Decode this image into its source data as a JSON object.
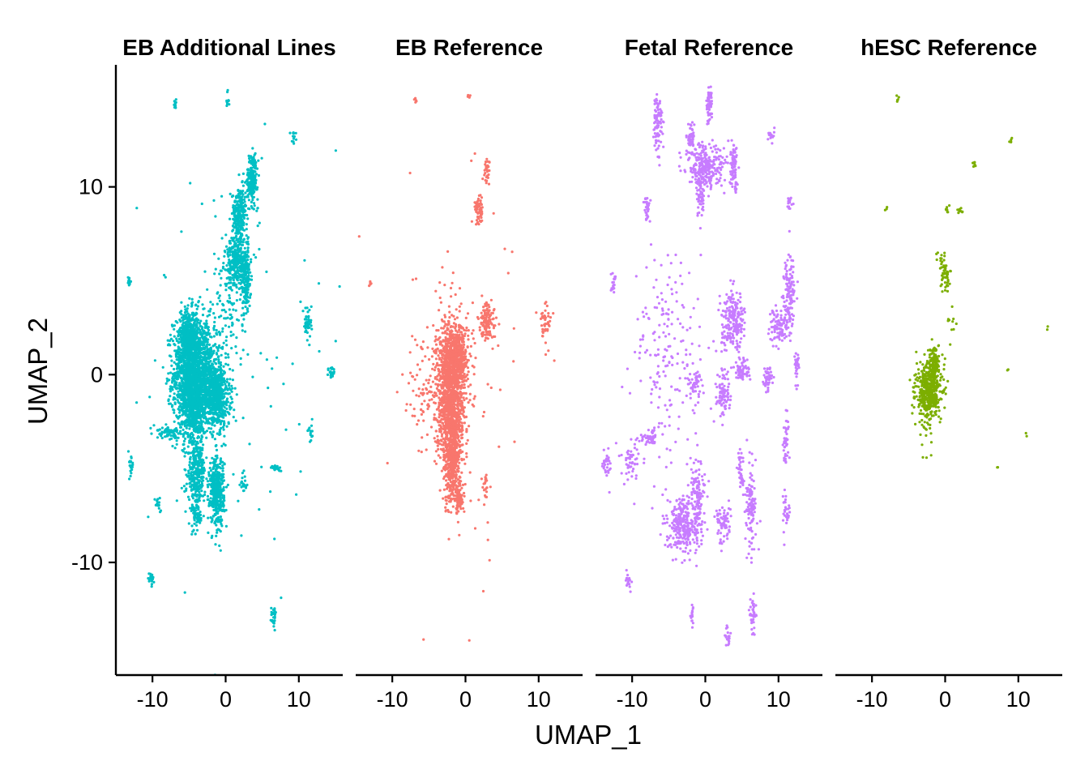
{
  "chart_data": {
    "type": "scatter",
    "xlabel": "UMAP_1",
    "ylabel": "UMAP_2",
    "xlim": [
      -15,
      16
    ],
    "ylim": [
      -16,
      16.5
    ],
    "x_ticks": [
      -10,
      0,
      10
    ],
    "x_tick_labels": [
      "-10",
      "0",
      "10"
    ],
    "y_ticks": [
      -10,
      0,
      10
    ],
    "y_tick_labels": [
      "-10",
      "0",
      "10"
    ],
    "grid": false,
    "legend": "none",
    "panels": [
      {
        "title": "EB Additional Lines",
        "color": "#00BFC4",
        "clusters": [
          {
            "x": -4.8,
            "y": 0.0,
            "sx": 1.2,
            "sy": 1.6,
            "n": 1400
          },
          {
            "x": -5.0,
            "y": 2.2,
            "sx": 0.6,
            "sy": 0.6,
            "n": 300
          },
          {
            "x": -4.2,
            "y": -1.8,
            "sx": 0.7,
            "sy": 0.9,
            "n": 300
          },
          {
            "x": -1.2,
            "y": -1.2,
            "sx": 0.9,
            "sy": 0.8,
            "n": 600
          },
          {
            "x": -2.5,
            "y": 0.3,
            "sx": 1.2,
            "sy": 1.2,
            "n": 400
          },
          {
            "x": -4.0,
            "y": -5.2,
            "sx": 0.6,
            "sy": 0.9,
            "n": 300
          },
          {
            "x": -1.2,
            "y": -6.2,
            "sx": 0.5,
            "sy": 0.9,
            "n": 450
          },
          {
            "x": 1.5,
            "y": 6.0,
            "sx": 0.8,
            "sy": 0.7,
            "n": 300
          },
          {
            "x": 1.9,
            "y": 8.5,
            "sx": 0.5,
            "sy": 0.7,
            "n": 250
          },
          {
            "x": 3.6,
            "y": 10.5,
            "sx": 0.4,
            "sy": 0.6,
            "n": 200
          },
          {
            "x": 2.8,
            "y": 5.0,
            "sx": 0.3,
            "sy": 1.0,
            "n": 150
          },
          {
            "x": 0.2,
            "y": 3.5,
            "sx": 1.0,
            "sy": 1.5,
            "n": 80
          },
          {
            "x": -7.8,
            "y": -3.1,
            "sx": 0.8,
            "sy": 0.2,
            "n": 70
          },
          {
            "x": -3.9,
            "y": -7.3,
            "sx": 0.3,
            "sy": 0.6,
            "n": 70
          },
          {
            "x": 11.2,
            "y": 2.8,
            "sx": 0.3,
            "sy": 0.5,
            "n": 40
          },
          {
            "x": 14.5,
            "y": 0.1,
            "sx": 0.2,
            "sy": 0.2,
            "n": 25
          },
          {
            "x": 7.0,
            "y": -5.0,
            "sx": 0.4,
            "sy": 0.1,
            "n": 20
          },
          {
            "x": 6.6,
            "y": -12.9,
            "sx": 0.2,
            "sy": 0.3,
            "n": 25
          },
          {
            "x": -10.2,
            "y": -10.9,
            "sx": 0.2,
            "sy": 0.2,
            "n": 20
          },
          {
            "x": 2.5,
            "y": -5.8,
            "sx": 0.2,
            "sy": 0.3,
            "n": 20
          },
          {
            "x": -13.0,
            "y": -4.8,
            "sx": 0.2,
            "sy": 0.4,
            "n": 20
          },
          {
            "x": -6.9,
            "y": 14.4,
            "sx": 0.1,
            "sy": 0.2,
            "n": 12
          },
          {
            "x": 0.3,
            "y": 14.7,
            "sx": 0.1,
            "sy": 0.2,
            "n": 12
          },
          {
            "x": -13.2,
            "y": 4.9,
            "sx": 0.1,
            "sy": 0.2,
            "n": 12
          },
          {
            "x": 9.3,
            "y": 12.7,
            "sx": 0.2,
            "sy": 0.2,
            "n": 12
          },
          {
            "x": 11.7,
            "y": -3.0,
            "sx": 0.2,
            "sy": 0.3,
            "n": 15
          },
          {
            "x": -9.2,
            "y": -6.8,
            "sx": 0.2,
            "sy": 0.3,
            "n": 15
          },
          {
            "x": 0.0,
            "y": 0.0,
            "sx": 5.5,
            "sy": 6.5,
            "n": 90
          }
        ]
      },
      {
        "title": "EB Reference",
        "color": "#F8766D",
        "clusters": [
          {
            "x": -2.0,
            "y": -1.0,
            "sx": 1.0,
            "sy": 2.0,
            "n": 1300
          },
          {
            "x": -1.2,
            "y": 0.8,
            "sx": 0.8,
            "sy": 0.8,
            "n": 400
          },
          {
            "x": -1.8,
            "y": -4.5,
            "sx": 0.5,
            "sy": 1.3,
            "n": 400
          },
          {
            "x": -0.8,
            "y": -6.6,
            "sx": 0.3,
            "sy": 0.3,
            "n": 80
          },
          {
            "x": 3.0,
            "y": 2.8,
            "sx": 0.6,
            "sy": 0.5,
            "n": 120
          },
          {
            "x": 1.8,
            "y": 8.8,
            "sx": 0.3,
            "sy": 0.4,
            "n": 70
          },
          {
            "x": 3.0,
            "y": 10.9,
            "sx": 0.2,
            "sy": 0.3,
            "n": 30
          },
          {
            "x": 11.0,
            "y": 2.8,
            "sx": 0.4,
            "sy": 0.6,
            "n": 40
          },
          {
            "x": 2.8,
            "y": -6.0,
            "sx": 0.2,
            "sy": 0.3,
            "n": 20
          },
          {
            "x": -5.5,
            "y": -1.0,
            "sx": 1.4,
            "sy": 1.6,
            "n": 90
          },
          {
            "x": 0.0,
            "y": 0.0,
            "sx": 5.5,
            "sy": 6.5,
            "n": 60
          },
          {
            "x": -6.8,
            "y": 14.6,
            "sx": 0.1,
            "sy": 0.1,
            "n": 6
          },
          {
            "x": 0.5,
            "y": 14.8,
            "sx": 0.1,
            "sy": 0.1,
            "n": 6
          },
          {
            "x": -13.0,
            "y": 4.8,
            "sx": 0.1,
            "sy": 0.1,
            "n": 5
          }
        ]
      },
      {
        "title": "Fetal Reference",
        "color": "#C77CFF",
        "clusters": [
          {
            "x": -6.5,
            "y": 13.5,
            "sx": 0.3,
            "sy": 0.8,
            "n": 90
          },
          {
            "x": 0.5,
            "y": 14.3,
            "sx": 0.2,
            "sy": 0.5,
            "n": 60
          },
          {
            "x": -2.0,
            "y": 12.5,
            "sx": 0.3,
            "sy": 0.4,
            "n": 50
          },
          {
            "x": 0.0,
            "y": 11.0,
            "sx": 1.3,
            "sy": 0.6,
            "n": 260
          },
          {
            "x": 3.9,
            "y": 11.0,
            "sx": 0.3,
            "sy": 0.6,
            "n": 80
          },
          {
            "x": -0.5,
            "y": 9.5,
            "sx": 0.3,
            "sy": 0.6,
            "n": 60
          },
          {
            "x": 3.8,
            "y": 2.8,
            "sx": 0.8,
            "sy": 0.8,
            "n": 220
          },
          {
            "x": 11.5,
            "y": 4.5,
            "sx": 0.4,
            "sy": 1.0,
            "n": 130
          },
          {
            "x": 10.0,
            "y": 2.5,
            "sx": 0.6,
            "sy": 0.5,
            "n": 90
          },
          {
            "x": 5.0,
            "y": 0.2,
            "sx": 0.5,
            "sy": 0.3,
            "n": 70
          },
          {
            "x": 2.5,
            "y": -1.0,
            "sx": 0.5,
            "sy": 0.6,
            "n": 90
          },
          {
            "x": 8.5,
            "y": -0.2,
            "sx": 0.3,
            "sy": 0.3,
            "n": 50
          },
          {
            "x": 12.5,
            "y": 0.2,
            "sx": 0.2,
            "sy": 0.4,
            "n": 30
          },
          {
            "x": -1.5,
            "y": -0.5,
            "sx": 0.5,
            "sy": 0.5,
            "n": 50
          },
          {
            "x": -3.0,
            "y": -8.0,
            "sx": 1.0,
            "sy": 0.8,
            "n": 280
          },
          {
            "x": -1.0,
            "y": -6.5,
            "sx": 0.5,
            "sy": 1.2,
            "n": 120
          },
          {
            "x": 2.5,
            "y": -8.0,
            "sx": 0.5,
            "sy": 0.5,
            "n": 70
          },
          {
            "x": 6.3,
            "y": -7.0,
            "sx": 0.4,
            "sy": 1.2,
            "n": 110
          },
          {
            "x": 4.8,
            "y": -5.2,
            "sx": 0.2,
            "sy": 0.6,
            "n": 40
          },
          {
            "x": 11.0,
            "y": -3.5,
            "sx": 0.2,
            "sy": 0.7,
            "n": 40
          },
          {
            "x": 11.0,
            "y": -7.2,
            "sx": 0.2,
            "sy": 0.5,
            "n": 30
          },
          {
            "x": -10.0,
            "y": -4.5,
            "sx": 0.7,
            "sy": 0.6,
            "n": 50
          },
          {
            "x": -7.5,
            "y": -3.4,
            "sx": 0.6,
            "sy": 0.2,
            "n": 50
          },
          {
            "x": -13.5,
            "y": -4.8,
            "sx": 0.3,
            "sy": 0.4,
            "n": 30
          },
          {
            "x": -12.5,
            "y": 4.9,
            "sx": 0.2,
            "sy": 0.3,
            "n": 20
          },
          {
            "x": -10.5,
            "y": -11.0,
            "sx": 0.2,
            "sy": 0.2,
            "n": 20
          },
          {
            "x": -8.0,
            "y": 9.0,
            "sx": 0.2,
            "sy": 0.4,
            "n": 30
          },
          {
            "x": 6.5,
            "y": -12.7,
            "sx": 0.2,
            "sy": 0.5,
            "n": 40
          },
          {
            "x": 3.0,
            "y": -14.0,
            "sx": 0.2,
            "sy": 0.3,
            "n": 20
          },
          {
            "x": -1.8,
            "y": -12.8,
            "sx": 0.1,
            "sy": 0.3,
            "n": 15
          },
          {
            "x": 9.0,
            "y": 12.7,
            "sx": 0.2,
            "sy": 0.2,
            "n": 15
          },
          {
            "x": 11.5,
            "y": 9.2,
            "sx": 0.2,
            "sy": 0.2,
            "n": 15
          },
          {
            "x": -5.0,
            "y": 1.0,
            "sx": 2.5,
            "sy": 3.0,
            "n": 180
          }
        ]
      },
      {
        "title": "hESC Reference",
        "color": "#7CAE00",
        "clusters": [
          {
            "x": -2.2,
            "y": -0.8,
            "sx": 0.9,
            "sy": 0.7,
            "n": 400
          },
          {
            "x": -1.5,
            "y": 0.5,
            "sx": 0.4,
            "sy": 0.5,
            "n": 120
          },
          {
            "x": -2.5,
            "y": -1.8,
            "sx": 0.5,
            "sy": 0.8,
            "n": 60
          },
          {
            "x": 0.0,
            "y": 5.3,
            "sx": 0.3,
            "sy": 0.4,
            "n": 50
          },
          {
            "x": -0.5,
            "y": 6.2,
            "sx": 0.3,
            "sy": 0.2,
            "n": 10
          },
          {
            "x": 0.3,
            "y": 8.8,
            "sx": 0.2,
            "sy": 0.1,
            "n": 8
          },
          {
            "x": 2.0,
            "y": 8.7,
            "sx": 0.2,
            "sy": 0.1,
            "n": 8
          },
          {
            "x": 4.0,
            "y": 11.2,
            "sx": 0.1,
            "sy": 0.1,
            "n": 6
          },
          {
            "x": 9.0,
            "y": 12.5,
            "sx": 0.1,
            "sy": 0.1,
            "n": 6
          },
          {
            "x": -6.5,
            "y": 14.7,
            "sx": 0.1,
            "sy": 0.1,
            "n": 5
          },
          {
            "x": -8.0,
            "y": 8.7,
            "sx": 0.1,
            "sy": 0.1,
            "n": 3
          },
          {
            "x": 14.0,
            "y": 2.5,
            "sx": 0.1,
            "sy": 0.1,
            "n": 2
          },
          {
            "x": 8.5,
            "y": 0.3,
            "sx": 0.1,
            "sy": 0.1,
            "n": 2
          },
          {
            "x": 11.0,
            "y": -3.2,
            "sx": 0.1,
            "sy": 0.1,
            "n": 2
          },
          {
            "x": 7.2,
            "y": -5.0,
            "sx": 0.1,
            "sy": 0.1,
            "n": 2
          },
          {
            "x": -3.0,
            "y": -3.5,
            "sx": 0.5,
            "sy": 0.5,
            "n": 6
          },
          {
            "x": 1.0,
            "y": 2.5,
            "sx": 0.5,
            "sy": 0.5,
            "n": 10
          }
        ]
      }
    ]
  }
}
